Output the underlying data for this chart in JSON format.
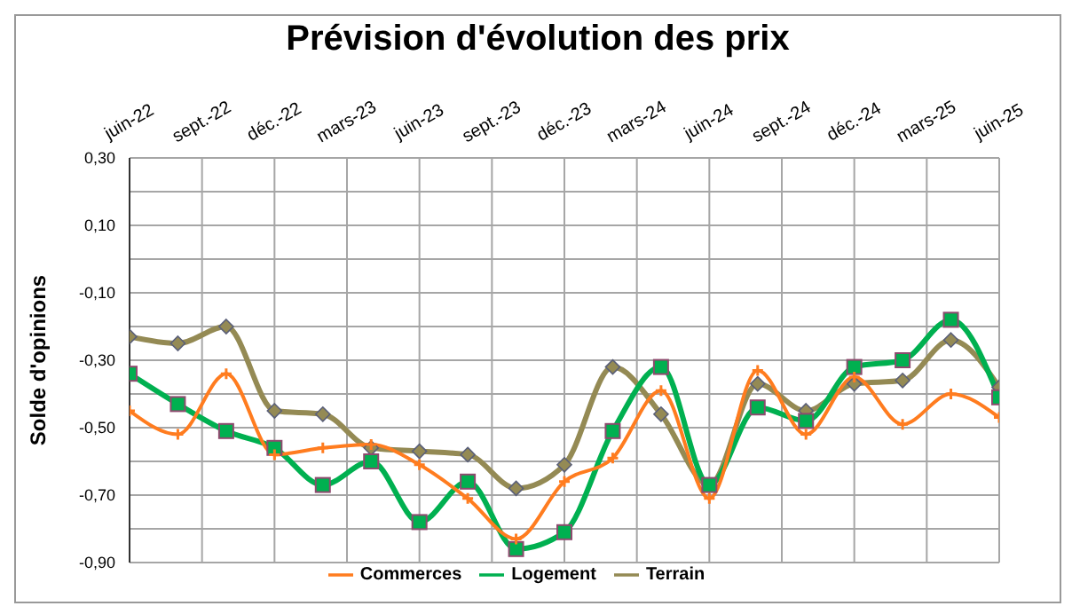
{
  "chart_data": {
    "type": "line",
    "title": "Prévision d'évolution des prix",
    "ylabel": "Solde d'opinions",
    "x": [
      "2022-06",
      "2022-08",
      "2022-10",
      "2022-12",
      "2023-02",
      "2023-04",
      "2023-06",
      "2023-08",
      "2023-10",
      "2023-12",
      "2024-02",
      "2024-04",
      "2024-06",
      "2024-08",
      "2024-10",
      "2024-12",
      "2025-02",
      "2025-04",
      "2025-06"
    ],
    "series": [
      {
        "name": "Terrain",
        "color": "#948a54",
        "marker": "diamond",
        "values": [
          -0.23,
          -0.25,
          -0.2,
          -0.45,
          -0.46,
          -0.56,
          -0.57,
          -0.58,
          -0.68,
          -0.61,
          -0.32,
          -0.46,
          -0.67,
          -0.37,
          -0.45,
          -0.37,
          -0.36,
          -0.24,
          -0.38
        ]
      },
      {
        "name": "Logement",
        "color": "#00b050",
        "marker": "square",
        "values": [
          -0.34,
          -0.43,
          -0.51,
          -0.56,
          -0.67,
          -0.6,
          -0.78,
          -0.66,
          -0.86,
          -0.81,
          -0.51,
          -0.32,
          -0.67,
          -0.44,
          -0.48,
          -0.32,
          -0.3,
          -0.18,
          -0.41
        ]
      },
      {
        "name": "Commerces",
        "color": "#ff7c1f",
        "marker": "cross",
        "values": [
          -0.45,
          -0.52,
          -0.34,
          -0.58,
          -0.56,
          -0.55,
          -0.61,
          -0.71,
          -0.83,
          -0.66,
          -0.59,
          -0.39,
          -0.71,
          -0.33,
          -0.52,
          -0.35,
          -0.49,
          -0.4,
          -0.47
        ]
      }
    ],
    "xlim": [
      "2022-06",
      "2025-06"
    ],
    "xticks": [
      {
        "value": "2022-06",
        "label": "juin-22"
      },
      {
        "value": "2022-09",
        "label": "sept.-22"
      },
      {
        "value": "2022-12",
        "label": "déc.-22"
      },
      {
        "value": "2023-03",
        "label": "mars-23"
      },
      {
        "value": "2023-06",
        "label": "juin-23"
      },
      {
        "value": "2023-09",
        "label": "sept.-23"
      },
      {
        "value": "2023-12",
        "label": "déc.-23"
      },
      {
        "value": "2024-03",
        "label": "mars-24"
      },
      {
        "value": "2024-06",
        "label": "juin-24"
      },
      {
        "value": "2024-09",
        "label": "sept.-24"
      },
      {
        "value": "2024-12",
        "label": "déc.-24"
      },
      {
        "value": "2025-03",
        "label": "mars-25"
      },
      {
        "value": "2025-06",
        "label": "juin-25"
      }
    ],
    "ylim": [
      -0.9,
      0.3
    ],
    "yticks": [
      {
        "value": -0.9,
        "label": "-0,90"
      },
      {
        "value": -0.8,
        "label": null
      },
      {
        "value": -0.7,
        "label": "-0,70"
      },
      {
        "value": -0.6,
        "label": null
      },
      {
        "value": -0.5,
        "label": "-0,50"
      },
      {
        "value": -0.4,
        "label": null
      },
      {
        "value": -0.3,
        "label": "-0,30"
      },
      {
        "value": -0.2,
        "label": null
      },
      {
        "value": -0.1,
        "label": "-0,10"
      },
      {
        "value": 0,
        "label": null
      },
      {
        "value": 0.1,
        "label": "0,10"
      },
      {
        "value": 0.2,
        "label": null
      },
      {
        "value": 0.3,
        "label": "0,30"
      }
    ],
    "grid": true,
    "legend": "bottom",
    "line_style": "solid"
  }
}
